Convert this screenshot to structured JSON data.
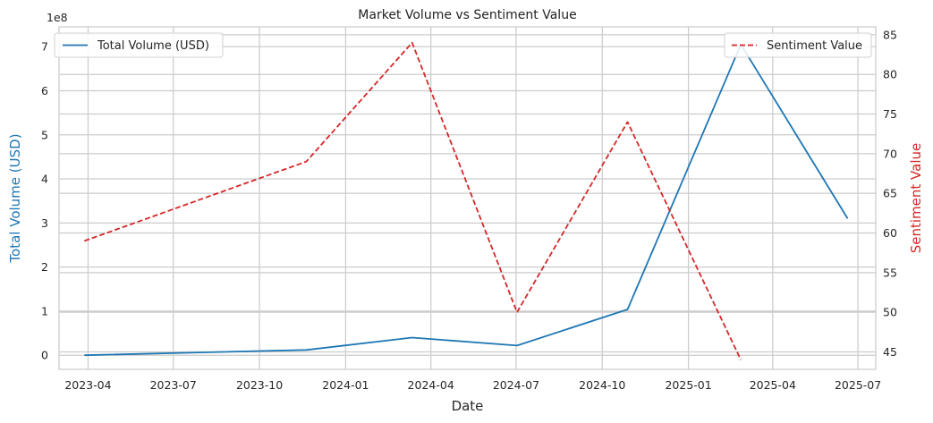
{
  "chart_data": {
    "type": "line",
    "title": "Market Volume vs Sentiment Value",
    "xlabel": "Date",
    "x": [
      "2023-03-28",
      "2023-11-20",
      "2024-03-12",
      "2024-07-02",
      "2024-10-28",
      "2025-02-26",
      "2025-06-20"
    ],
    "x_range": [
      "2023-03-01",
      "2025-07-20"
    ],
    "x_ticks": [
      "2023-04",
      "2023-07",
      "2023-10",
      "2024-01",
      "2024-04",
      "2024-07",
      "2024-10",
      "2025-01",
      "2025-04",
      "2025-07"
    ],
    "y_left": {
      "label": "Total Volume (USD)",
      "color": "#1f77b4",
      "scale_note": "1e8",
      "ylim": [
        -0.32,
        7.45
      ],
      "ticks": [
        "0",
        "1",
        "2",
        "3",
        "4",
        "5",
        "6",
        "7"
      ]
    },
    "y_right": {
      "label": "Sentiment Value",
      "color": "#d62728",
      "ylim": [
        42.8,
        86.0
      ],
      "ticks": [
        "45",
        "50",
        "55",
        "60",
        "65",
        "70",
        "75",
        "80",
        "85"
      ]
    },
    "series": [
      {
        "name": "Total Volume (USD)",
        "axis": "left",
        "color": "#1f77b4",
        "linestyle": "solid",
        "values": [
          0.0,
          0.12,
          0.4,
          0.22,
          1.04,
          7.05,
          3.1
        ]
      },
      {
        "name": "Sentiment Value",
        "axis": "right",
        "color": "#d62728",
        "linestyle": "dashed",
        "values": [
          59,
          69,
          84,
          50,
          74,
          44,
          null
        ]
      }
    ],
    "legends": [
      {
        "series": "Total Volume (USD)",
        "placement": "upper-left"
      },
      {
        "series": "Sentiment Value",
        "placement": "upper-right"
      }
    ],
    "grid": true
  }
}
